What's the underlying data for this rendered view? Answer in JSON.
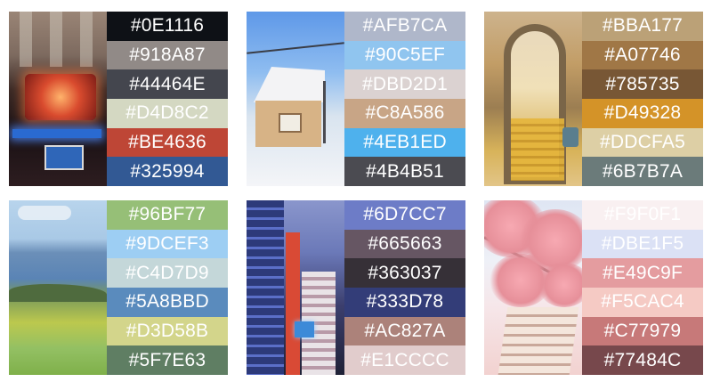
{
  "palettes": [
    {
      "photo_icon": "carnival-street-photo",
      "colors": [
        {
          "hex": "#0E1116",
          "label": "#0E1116",
          "text": "#ffffff"
        },
        {
          "hex": "#918A87",
          "label": "#918A87",
          "text": "#ffffff"
        },
        {
          "hex": "#44464E",
          "label": "#44464E",
          "text": "#ffffff"
        },
        {
          "hex": "#D4D8C2",
          "label": "#D4D8C2",
          "text": "#ffffff"
        },
        {
          "hex": "#BE4636",
          "label": "#BE4636",
          "text": "#ffffff"
        },
        {
          "hex": "#325994",
          "label": "#325994",
          "text": "#ffffff"
        }
      ]
    },
    {
      "photo_icon": "snowy-house-photo",
      "colors": [
        {
          "hex": "#AFB7CA",
          "label": "#AFB7CA",
          "text": "#ffffff"
        },
        {
          "hex": "#90C5EF",
          "label": "#90C5EF",
          "text": "#ffffff"
        },
        {
          "hex": "#DBD2D1",
          "label": "#DBD2D1",
          "text": "#ffffff"
        },
        {
          "hex": "#C8A586",
          "label": "#C8A586",
          "text": "#ffffff"
        },
        {
          "hex": "#4EB1ED",
          "label": "#4EB1ED",
          "text": "#ffffff"
        },
        {
          "hex": "#4B4B51",
          "label": "#4B4B51",
          "text": "#ffffff"
        }
      ]
    },
    {
      "photo_icon": "arched-stairway-photo",
      "colors": [
        {
          "hex": "#BBA177",
          "label": "#BBA177",
          "text": "#ffffff"
        },
        {
          "hex": "#A07746",
          "label": "#A07746",
          "text": "#ffffff"
        },
        {
          "hex": "#785735",
          "label": "#785735",
          "text": "#ffffff"
        },
        {
          "hex": "#D49328",
          "label": "#D49328",
          "text": "#ffffff"
        },
        {
          "hex": "#DDCFA5",
          "label": "#DDCFA5",
          "text": "#ffffff"
        },
        {
          "hex": "#6B7B7A",
          "label": "#6B7B7A",
          "text": "#ffffff"
        }
      ]
    },
    {
      "photo_icon": "lake-meadow-photo",
      "colors": [
        {
          "hex": "#96BF77",
          "label": "#96BF77",
          "text": "#ffffff"
        },
        {
          "hex": "#9DCEF3",
          "label": "#9DCEF3",
          "text": "#ffffff"
        },
        {
          "hex": "#C4D7D9",
          "label": "#C4D7D9",
          "text": "#ffffff"
        },
        {
          "hex": "#5A8BBD",
          "label": "#5A8BBD",
          "text": "#ffffff"
        },
        {
          "hex": "#D3D58B",
          "label": "#D3D58B",
          "text": "#ffffff"
        },
        {
          "hex": "#5F7E63",
          "label": "#5F7E63",
          "text": "#ffffff"
        }
      ]
    },
    {
      "photo_icon": "city-night-photo",
      "colors": [
        {
          "hex": "#6D7CC7",
          "label": "#6D7CC7",
          "text": "#ffffff"
        },
        {
          "hex": "#665663",
          "label": "#665663",
          "text": "#ffffff"
        },
        {
          "hex": "#363037",
          "label": "#363037",
          "text": "#ffffff"
        },
        {
          "hex": "#333D78",
          "label": "#333D78",
          "text": "#ffffff"
        },
        {
          "hex": "#AC827A",
          "label": "#AC827A",
          "text": "#ffffff"
        },
        {
          "hex": "#E1CCCC",
          "label": "#E1CCCC",
          "text": "#ffffff"
        }
      ]
    },
    {
      "photo_icon": "cherry-blossom-photo",
      "colors": [
        {
          "hex": "#F9F0F1",
          "label": "#F9F0F1",
          "text": "#ffffff"
        },
        {
          "hex": "#DBE1F5",
          "label": "#DBE1F5",
          "text": "#ffffff"
        },
        {
          "hex": "#E49C9F",
          "label": "#E49C9F",
          "text": "#ffffff"
        },
        {
          "hex": "#F5CAC4",
          "label": "#F5CAC4",
          "text": "#ffffff"
        },
        {
          "hex": "#C77979",
          "label": "#C77979",
          "text": "#ffffff"
        },
        {
          "hex": "#77484C",
          "label": "#77484C",
          "text": "#ffffff"
        }
      ]
    }
  ]
}
